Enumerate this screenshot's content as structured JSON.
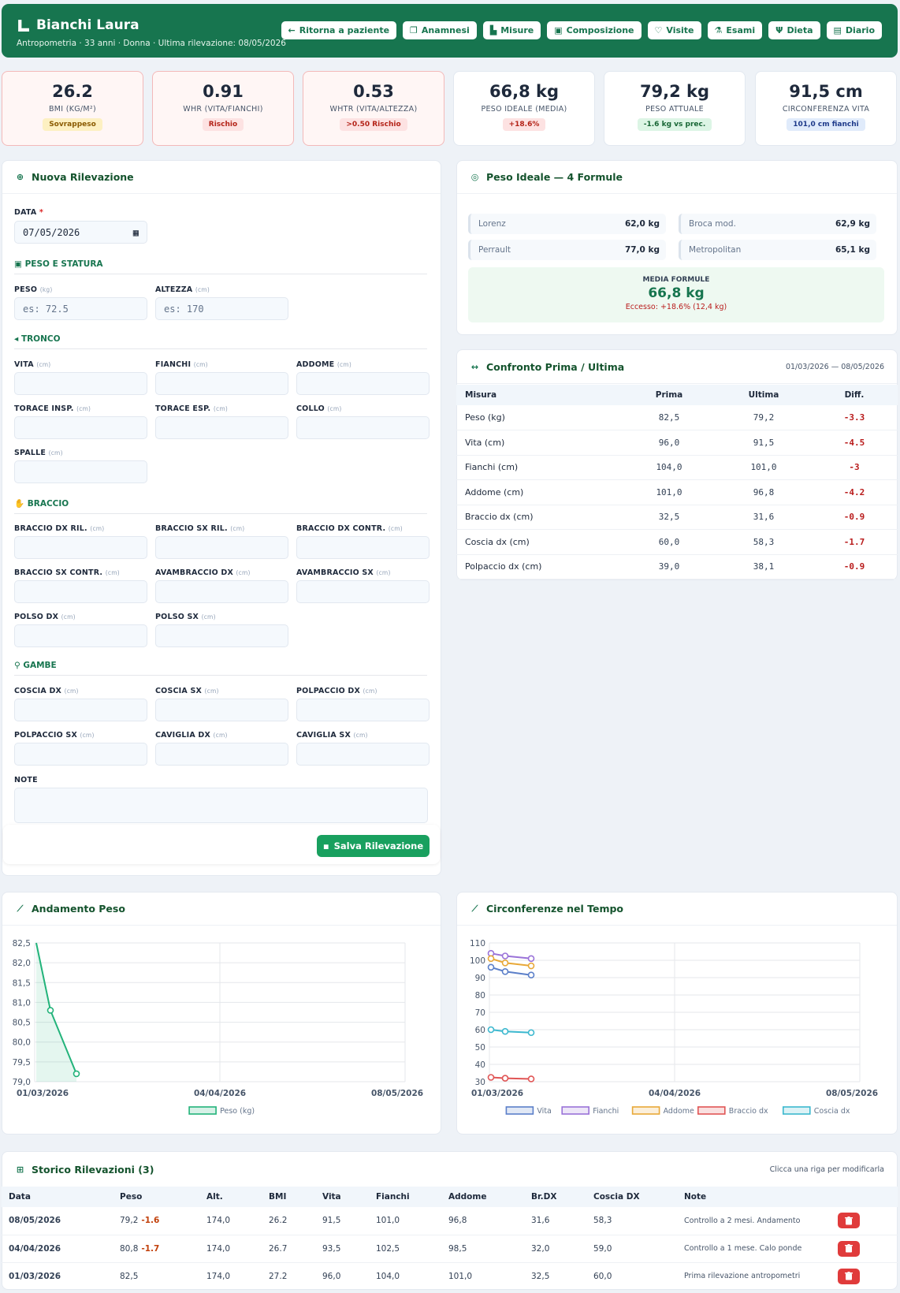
{
  "header": {
    "name": "Bianchi Laura",
    "subtitle": "Antropometria · 33 anni · Donna · Ultima rilevazione: 08/05/2026",
    "nav": [
      "Ritorna a paziente",
      "Anamnesi",
      "Misure",
      "Composizione",
      "Visite",
      "Esami",
      "Dieta",
      "Diario"
    ]
  },
  "kpis": [
    {
      "value": "26.2",
      "label": "BMI (KG/M²)",
      "badge": "Sovrappeso"
    },
    {
      "value": "0.91",
      "label": "WHR (VITA/FIANCHI)",
      "badge": "Rischio"
    },
    {
      "value": "0.53",
      "label": "WHTR (VITA/ALTEZZA)",
      "badge": ">0.50 Rischio"
    },
    {
      "value": "66,8 kg",
      "label": "PESO IDEALE (MEDIA)",
      "badge": "+18.6%"
    },
    {
      "value": "79,2 kg",
      "label": "PESO ATTUALE",
      "badge": "-1.6 kg vs prec."
    },
    {
      "value": "91,5 cm",
      "label": "CIRCONFERENZA VITA",
      "badge": "101,0 cm fianchi"
    }
  ],
  "form": {
    "title": "Nuova Rilevazione",
    "date_label": "DATA",
    "required": "*",
    "date_value": "07/05/2026",
    "sections": {
      "peso": "PESO E STATURA",
      "tronco": "TRONCO",
      "braccio": "BRACCIO",
      "gambe": "GAMBE"
    },
    "unit_kg": "(kg)",
    "unit_cm": "(cm)",
    "peso_label": "PESO",
    "peso_ph": "es: 72.5",
    "alt_label": "ALTEZZA",
    "alt_ph": "es: 170",
    "tronco": [
      "VITA",
      "FIANCHI",
      "ADDOME",
      "TORACE INSP.",
      "TORACE ESP.",
      "COLLO",
      "SPALLE"
    ],
    "braccio": [
      "BRACCIO DX RIL.",
      "BRACCIO SX RIL.",
      "BRACCIO DX CONTR.",
      "BRACCIO SX CONTR.",
      "AVAMBRACCIO DX",
      "AVAMBRACCIO SX",
      "POLSO DX",
      "POLSO SX"
    ],
    "gambe": [
      "COSCIA DX",
      "COSCIA SX",
      "POLPACCIO DX",
      "POLPACCIO SX",
      "CAVIGLIA DX",
      "CAVIGLIA SX"
    ],
    "note_label": "NOTE",
    "save": "Salva Rilevazione"
  },
  "ideal": {
    "title": "Peso Ideale — 4 Formule",
    "items": [
      {
        "name": "Lorenz",
        "value": "62,0 kg"
      },
      {
        "name": "Broca mod.",
        "value": "62,9 kg"
      },
      {
        "name": "Perrault",
        "value": "77,0 kg"
      },
      {
        "name": "Metropolitan",
        "value": "65,1 kg"
      }
    ],
    "media_label": "MEDIA FORMULE",
    "media_value": "66,8 kg",
    "excess": "Eccesso: +18.6% (12,4 kg)"
  },
  "compare": {
    "title": "Confronto Prima / Ultima",
    "range": "01/03/2026 — 08/05/2026",
    "headers": [
      "Misura",
      "Prima",
      "Ultima",
      "Diff."
    ],
    "rows": [
      [
        "Peso (kg)",
        "82,5",
        "79,2",
        "-3.3"
      ],
      [
        "Vita (cm)",
        "96,0",
        "91,5",
        "-4.5"
      ],
      [
        "Fianchi (cm)",
        "104,0",
        "101,0",
        "-3"
      ],
      [
        "Addome (cm)",
        "101,0",
        "96,8",
        "-4.2"
      ],
      [
        "Braccio dx (cm)",
        "32,5",
        "31,6",
        "-0.9"
      ],
      [
        "Coscia dx (cm)",
        "60,0",
        "58,3",
        "-1.7"
      ],
      [
        "Polpaccio dx (cm)",
        "39,0",
        "38,1",
        "-0.9"
      ]
    ]
  },
  "chart_data": [
    {
      "type": "line",
      "title": "Andamento Peso",
      "x": [
        "01/03/2026",
        "04/04/2026",
        "08/05/2026"
      ],
      "x_ticks": [
        "01/03/2026",
        "04/04/2026",
        "08/05/2026"
      ],
      "series": [
        {
          "name": "Peso (kg)",
          "values": [
            82.5,
            80.8,
            79.2
          ],
          "color": "#22b37a"
        }
      ],
      "y_ticks": [
        "82,5",
        "82,0",
        "81,5",
        "81,0",
        "80,5",
        "80,0",
        "79,5",
        "79,0"
      ],
      "ylim": [
        79.0,
        82.5
      ],
      "grid": true,
      "legend": "bottom"
    },
    {
      "type": "line",
      "title": "Circonferenze nel Tempo",
      "x": [
        "01/03/2026",
        "04/04/2026",
        "08/05/2026"
      ],
      "x_ticks": [
        "01/03/2026",
        "04/04/2026",
        "08/05/2026"
      ],
      "series": [
        {
          "name": "Vita",
          "values": [
            96.0,
            93.5,
            91.5
          ],
          "color": "#5b7fc9"
        },
        {
          "name": "Fianchi",
          "values": [
            104.0,
            102.5,
            101.0
          ],
          "color": "#9a72d8"
        },
        {
          "name": "Addome",
          "values": [
            101.0,
            98.5,
            96.8
          ],
          "color": "#e8a838"
        },
        {
          "name": "Braccio dx",
          "values": [
            32.5,
            32.0,
            31.6
          ],
          "color": "#e05555"
        },
        {
          "name": "Coscia dx",
          "values": [
            60.0,
            59.0,
            58.3
          ],
          "color": "#3cb8cf"
        }
      ],
      "y_ticks": [
        "110",
        "100",
        "90",
        "80",
        "70",
        "60",
        "50",
        "40",
        "30"
      ],
      "ylim": [
        30,
        110
      ],
      "grid": true,
      "legend": "bottom"
    }
  ],
  "history": {
    "title": "Storico Rilevazioni (3)",
    "hint": "Clicca una riga per modificarla",
    "headers": [
      "Data",
      "Peso",
      "Alt.",
      "BMI",
      "Vita",
      "Fianchi",
      "Addome",
      "Br.DX",
      "Coscia DX",
      "Note"
    ],
    "rows": [
      {
        "date": "08/05/2026",
        "peso": "79,2",
        "delta": "-1.6",
        "alt": "174,0",
        "bmi": "26.2",
        "vita": "91,5",
        "fianchi": "101,0",
        "addome": "96,8",
        "br": "31,6",
        "coscia": "58,3",
        "note": "Controllo a 2 mesi. Andamento"
      },
      {
        "date": "04/04/2026",
        "peso": "80,8",
        "delta": "-1.7",
        "alt": "174,0",
        "bmi": "26.7",
        "vita": "93,5",
        "fianchi": "102,5",
        "addome": "98,5",
        "br": "32,0",
        "coscia": "59,0",
        "note": "Controllo a 1 mese. Calo ponde"
      },
      {
        "date": "01/03/2026",
        "peso": "82,5",
        "delta": "",
        "alt": "174,0",
        "bmi": "27.2",
        "vita": "96,0",
        "fianchi": "104,0",
        "addome": "101,0",
        "br": "32,5",
        "coscia": "60,0",
        "note": "Prima rilevazione antropometri"
      }
    ]
  }
}
